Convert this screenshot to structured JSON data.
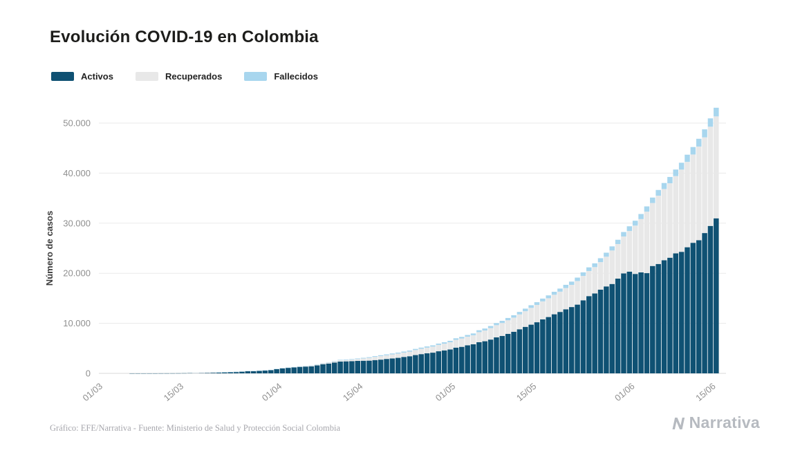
{
  "header": {
    "title": "Evolución COVID-19 en Colombia"
  },
  "legend": [
    {
      "label": "Activos",
      "color": "#0f5173"
    },
    {
      "label": "Recuperados",
      "color": "#e8e8e8"
    },
    {
      "label": "Fallecidos",
      "color": "#a8d6ee"
    }
  ],
  "footer": {
    "credit": "Gráfico: EFE/Narrativa - Fuente: Ministerio de Salud y Protección Social Colombia",
    "brand": "Narrativa"
  },
  "chart_data": {
    "type": "bar",
    "stacked": true,
    "title": "Evolución COVID-19 en Colombia",
    "xlabel": "",
    "ylabel": "Número de casos",
    "ylim": [
      0,
      55000
    ],
    "grid": true,
    "legend_position": "top-left",
    "yticks": [
      0,
      10000,
      20000,
      30000,
      40000,
      50000
    ],
    "ytick_labels": [
      "0",
      "10.000",
      "20.000",
      "30.000",
      "40.000",
      "50.000"
    ],
    "xtick_labels": [
      "01/03",
      "15/03",
      "01/04",
      "15/04",
      "01/05",
      "15/05",
      "01/06",
      "15/06"
    ],
    "dates": [
      "01/03",
      "02/03",
      "03/03",
      "04/03",
      "05/03",
      "06/03",
      "07/03",
      "08/03",
      "09/03",
      "10/03",
      "11/03",
      "12/03",
      "13/03",
      "14/03",
      "15/03",
      "16/03",
      "17/03",
      "18/03",
      "19/03",
      "20/03",
      "21/03",
      "22/03",
      "23/03",
      "24/03",
      "25/03",
      "26/03",
      "27/03",
      "28/03",
      "29/03",
      "30/03",
      "31/03",
      "01/04",
      "02/04",
      "03/04",
      "04/04",
      "05/04",
      "06/04",
      "07/04",
      "08/04",
      "09/04",
      "10/04",
      "11/04",
      "12/04",
      "13/04",
      "14/04",
      "15/04",
      "16/04",
      "17/04",
      "18/04",
      "19/04",
      "20/04",
      "21/04",
      "22/04",
      "23/04",
      "24/04",
      "25/04",
      "26/04",
      "27/04",
      "28/04",
      "29/04",
      "30/04",
      "01/05",
      "02/05",
      "03/05",
      "04/05",
      "05/05",
      "06/05",
      "07/05",
      "08/05",
      "09/05",
      "10/05",
      "11/05",
      "12/05",
      "13/05",
      "14/05",
      "15/05",
      "16/05",
      "17/05",
      "18/05",
      "19/05",
      "20/05",
      "21/05",
      "22/05",
      "23/05",
      "24/05",
      "25/05",
      "26/05",
      "27/05",
      "28/05",
      "29/05",
      "30/05",
      "31/05",
      "01/06",
      "02/06",
      "03/06",
      "04/06",
      "05/06",
      "06/06",
      "07/06",
      "08/06",
      "09/06",
      "10/06",
      "11/06",
      "12/06",
      "13/06",
      "14/06",
      "15/06"
    ],
    "series": [
      {
        "name": "Activos",
        "color": "#0f5173",
        "values": [
          0,
          0,
          0,
          0,
          0,
          1,
          1,
          1,
          3,
          3,
          9,
          13,
          16,
          22,
          34,
          54,
          74,
          92,
          126,
          155,
          191,
          228,
          268,
          295,
          365,
          454,
          470,
          515,
          578,
          666,
          859,
          1009,
          1096,
          1187,
          1289,
          1350,
          1410,
          1585,
          1829,
          1957,
          2168,
          2359,
          2397,
          2440,
          2498,
          2522,
          2539,
          2652,
          2744,
          2878,
          2984,
          3100,
          3280,
          3419,
          3653,
          3842,
          4002,
          4134,
          4412,
          4584,
          4775,
          5141,
          5295,
          5606,
          5808,
          6222,
          6414,
          6749,
          7199,
          7481,
          7895,
          8309,
          8808,
          9288,
          9727,
          10210,
          10790,
          11249,
          11800,
          12272,
          12801,
          13247,
          13731,
          14591,
          15432,
          15966,
          16716,
          17368,
          17857,
          18922,
          19959,
          20313,
          19863,
          20173,
          20021,
          21450,
          21852,
          22602,
          23104,
          23973,
          24279,
          25194,
          26081,
          26598,
          28028,
          29453,
          30971
        ]
      },
      {
        "name": "Recuperados",
        "color": "#e8e8e8",
        "values": [
          0,
          0,
          0,
          0,
          0,
          0,
          0,
          0,
          0,
          0,
          0,
          0,
          0,
          0,
          0,
          0,
          1,
          1,
          2,
          3,
          4,
          5,
          6,
          8,
          10,
          12,
          15,
          18,
          22,
          26,
          31,
          39,
          46,
          55,
          85,
          100,
          123,
          145,
          170,
          197,
          225,
          250,
          270,
          300,
          354,
          452,
          550,
          634,
          711,
          735,
          804,
          853,
          870,
          927,
          1003,
          1067,
          1133,
          1210,
          1268,
          1345,
          1439,
          1551,
          1666,
          1722,
          1807,
          2013,
          2148,
          2300,
          2424,
          2569,
          2705,
          2825,
          2971,
          3133,
          3358,
          3460,
          3587,
          3751,
          3903,
          4050,
          4256,
          4431,
          4718,
          4881,
          5016,
          5265,
          5511,
          5933,
          6687,
          6913,
          7387,
          8131,
          9661,
          10651,
          12288,
          12583,
          13638,
          14220,
          14873,
          15438,
          16427,
          17055,
          17643,
          18715,
          19126,
          19819,
          20366
        ]
      },
      {
        "name": "Fallecidos",
        "color": "#a8d6ee",
        "values": [
          0,
          0,
          0,
          0,
          0,
          0,
          0,
          0,
          0,
          0,
          0,
          0,
          0,
          0,
          0,
          0,
          0,
          0,
          0,
          0,
          1,
          2,
          3,
          3,
          3,
          4,
          6,
          6,
          8,
          10,
          16,
          17,
          19,
          25,
          32,
          35,
          46,
          50,
          55,
          69,
          80,
          100,
          109,
          112,
          127,
          131,
          144,
          153,
          166,
          179,
          189,
          196,
          206,
          215,
          225,
          233,
          244,
          253,
          269,
          278,
          293,
          314,
          324,
          340,
          358,
          378,
          397,
          407,
          428,
          445,
          463,
          479,
          493,
          509,
          525,
          546,
          562,
          574,
          592,
          613,
          630,
          652,
          682,
          705,
          727,
          750,
          776,
          803,
          822,
          853,
          890,
          939,
          969,
          1009,
          1045,
          1087,
          1145,
          1205,
          1259,
          1308,
          1372,
          1433,
          1488,
          1545,
          1592,
          1667,
          1726
        ]
      }
    ]
  }
}
